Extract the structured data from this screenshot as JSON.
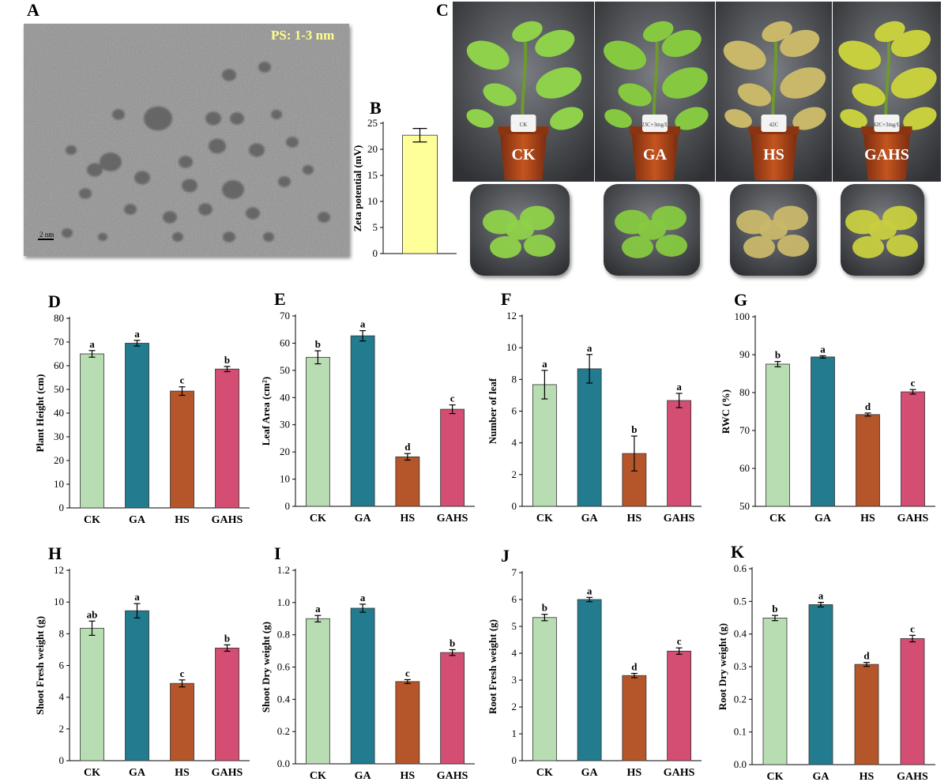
{
  "panels": {
    "A": "A",
    "B": "B",
    "C": "C"
  },
  "tem": {
    "annotation": "PS: 1-3 nm",
    "scalebar": "2 nm"
  },
  "photos": {
    "labels": [
      "CK",
      "GA",
      "HS",
      "GAHS"
    ],
    "pot_tags": [
      "CK",
      "23C+3mg/L",
      "42C",
      "42C+3mg/L"
    ]
  },
  "colors": {
    "CK": "#b8ddb2",
    "GA": "#237b8f",
    "HS": "#b5562a",
    "GAHS": "#d44d72",
    "zeta": "#ffff99"
  },
  "chart_data": [
    {
      "id": "B",
      "type": "bar",
      "categories": [
        ""
      ],
      "values": [
        22.7
      ],
      "errors": [
        1.3
      ],
      "ylabel": "Zeta potential (mV)",
      "ylim": [
        0,
        25
      ],
      "ticks": [
        0,
        5,
        10,
        15,
        20,
        25
      ],
      "letters": []
    },
    {
      "id": "D",
      "type": "bar",
      "categories": [
        "CK",
        "GA",
        "HS",
        "GAHS"
      ],
      "values": [
        65,
        69.5,
        49.3,
        58.6
      ],
      "errors": [
        1.4,
        1.2,
        1.8,
        1.1
      ],
      "ylabel": "Plant Height (cm)",
      "ylim": [
        0,
        80
      ],
      "ticks": [
        0,
        10,
        20,
        30,
        40,
        50,
        60,
        70,
        80
      ],
      "letters": [
        "a",
        "a",
        "c",
        "b"
      ]
    },
    {
      "id": "E",
      "type": "bar",
      "categories": [
        "CK",
        "GA",
        "HS",
        "GAHS"
      ],
      "values": [
        54.8,
        62.7,
        18.2,
        35.7
      ],
      "errors": [
        2.4,
        1.9,
        1.2,
        1.6
      ],
      "ylabel": "Leaf Area (cm²)",
      "ylim": [
        0,
        70
      ],
      "ticks": [
        0,
        10,
        20,
        30,
        40,
        50,
        60,
        70
      ],
      "letters": [
        "b",
        "a",
        "d",
        "c"
      ]
    },
    {
      "id": "F",
      "type": "bar",
      "categories": [
        "CK",
        "GA",
        "HS",
        "GAHS"
      ],
      "values": [
        7.67,
        8.67,
        3.33,
        6.67
      ],
      "errors": [
        0.9,
        0.9,
        1.1,
        0.45
      ],
      "ylabel": "Number of leaf",
      "ylim": [
        0,
        12
      ],
      "ticks": [
        0,
        2,
        4,
        6,
        8,
        10,
        12
      ],
      "letters": [
        "a",
        "a",
        "b",
        "a"
      ]
    },
    {
      "id": "G",
      "type": "bar",
      "categories": [
        "CK",
        "GA",
        "HS",
        "GAHS"
      ],
      "values": [
        87.5,
        89.4,
        74.2,
        80.2
      ],
      "errors": [
        0.7,
        0.3,
        0.4,
        0.6
      ],
      "ylabel": "RWC (%)",
      "ylim": [
        50,
        100
      ],
      "ticks": [
        50,
        60,
        70,
        80,
        90,
        100
      ],
      "letters": [
        "b",
        "a",
        "d",
        "c"
      ]
    },
    {
      "id": "H",
      "type": "bar",
      "categories": [
        "CK",
        "GA",
        "HS",
        "GAHS"
      ],
      "values": [
        8.35,
        9.45,
        4.87,
        7.1
      ],
      "errors": [
        0.45,
        0.45,
        0.22,
        0.2
      ],
      "ylabel": "Shoot Fresh weight (g)",
      "ylim": [
        0,
        12
      ],
      "ticks": [
        0,
        2,
        4,
        6,
        8,
        10,
        12
      ],
      "letters": [
        "ab",
        "a",
        "c",
        "b"
      ]
    },
    {
      "id": "I",
      "type": "bar",
      "categories": [
        "CK",
        "GA",
        "HS",
        "GAHS"
      ],
      "values": [
        0.9,
        0.965,
        0.51,
        0.69
      ],
      "errors": [
        0.02,
        0.025,
        0.012,
        0.018
      ],
      "ylabel": "Shoot Dry weight (g)",
      "ylim": [
        0,
        1.2
      ],
      "ticks": [
        "0.0",
        "0.2",
        "0.4",
        "0.6",
        "0.8",
        "1.0",
        "1.2"
      ],
      "letters": [
        "a",
        "a",
        "c",
        "b"
      ]
    },
    {
      "id": "J",
      "type": "bar",
      "categories": [
        "CK",
        "GA",
        "HS",
        "GAHS"
      ],
      "values": [
        5.33,
        6.0,
        3.17,
        4.08
      ],
      "errors": [
        0.12,
        0.08,
        0.08,
        0.12
      ],
      "ylabel": "Root Fresh weight (g)",
      "ylim": [
        0,
        7
      ],
      "ticks": [
        0,
        1,
        2,
        3,
        4,
        5,
        6,
        7
      ],
      "letters": [
        "b",
        "a",
        "d",
        "c"
      ]
    },
    {
      "id": "K",
      "type": "bar",
      "categories": [
        "CK",
        "GA",
        "HS",
        "GAHS"
      ],
      "values": [
        0.449,
        0.49,
        0.307,
        0.386
      ],
      "errors": [
        0.008,
        0.007,
        0.006,
        0.01
      ],
      "ylabel": "Root Dry weight (g)",
      "ylim": [
        0,
        0.6
      ],
      "ticks": [
        "0.0",
        "0.1",
        "0.2",
        "0.3",
        "0.4",
        "0.5",
        "0.6"
      ],
      "letters": [
        "b",
        "a",
        "d",
        "c"
      ]
    }
  ]
}
